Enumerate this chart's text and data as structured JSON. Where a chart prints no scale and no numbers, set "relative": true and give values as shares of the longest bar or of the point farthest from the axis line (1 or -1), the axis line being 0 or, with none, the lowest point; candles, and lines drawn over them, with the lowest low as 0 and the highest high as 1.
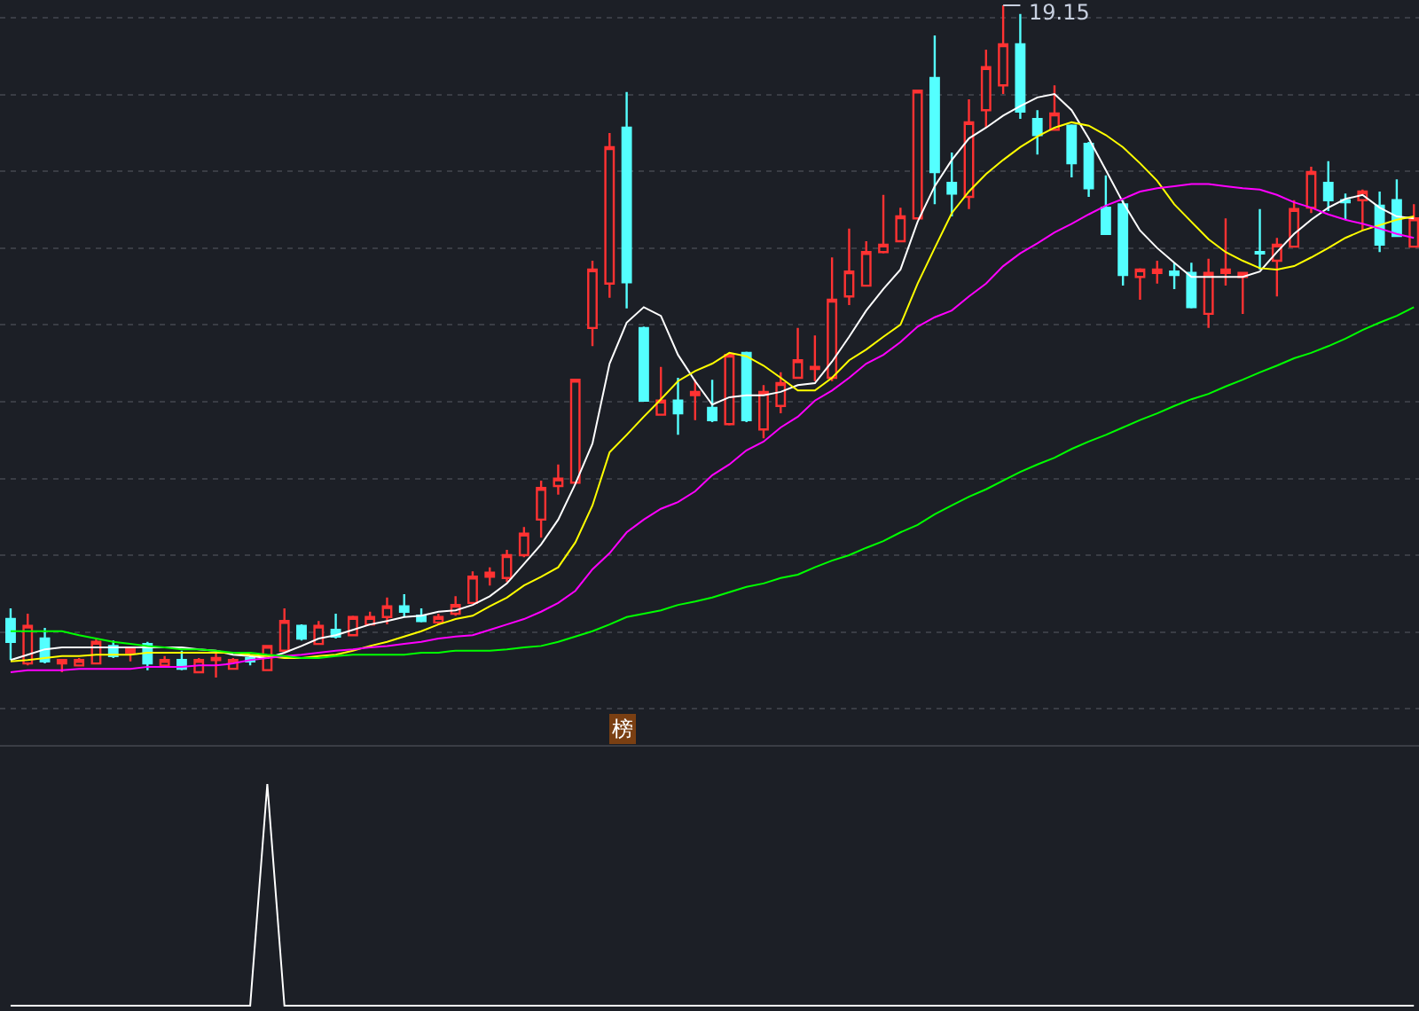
{
  "chart_data": [
    {
      "type": "candlestick",
      "relative": true,
      "grid": "y",
      "categories": [
        null,
        null,
        null,
        null,
        null,
        null,
        null,
        null,
        null,
        null,
        null,
        null,
        null,
        null,
        null,
        null,
        null,
        null,
        null,
        null,
        null,
        null,
        null,
        null,
        null,
        null,
        null,
        null,
        null,
        null,
        null,
        null,
        null,
        null,
        null,
        null,
        null,
        null,
        null,
        null,
        null,
        null,
        null,
        null,
        null,
        null,
        null,
        null,
        null,
        null,
        null,
        null,
        null,
        null,
        null,
        null,
        null,
        null,
        null,
        null,
        null,
        null,
        null,
        null,
        null,
        null,
        null,
        null,
        null,
        null,
        null,
        null,
        null,
        null,
        null,
        null,
        null,
        null,
        null,
        null,
        null,
        null,
        null
      ],
      "ohlc": [
        [
          0.087,
          0.103,
          0.026,
          0.053
        ],
        [
          0.021,
          0.095,
          0.018,
          0.077
        ],
        [
          0.058,
          0.074,
          0.021,
          0.024
        ],
        [
          0.021,
          0.026,
          0.008,
          0.026
        ],
        [
          0.018,
          0.029,
          0.018,
          0.026
        ],
        [
          0.021,
          0.058,
          0.021,
          0.053
        ],
        [
          0.047,
          0.055,
          0.029,
          0.032
        ],
        [
          0.037,
          0.045,
          0.024,
          0.042
        ],
        [
          0.05,
          0.053,
          0.011,
          0.021
        ],
        [
          0.018,
          0.032,
          0.018,
          0.026
        ],
        [
          0.026,
          0.04,
          0.011,
          0.013
        ],
        [
          0.008,
          0.029,
          0.008,
          0.026
        ],
        [
          0.026,
          0.037,
          0,
          0.029
        ],
        [
          0.013,
          0.029,
          0.013,
          0.026
        ],
        [
          0.029,
          0.032,
          0.018,
          0.024
        ],
        [
          0.011,
          0.047,
          0.011,
          0.047
        ],
        [
          0.04,
          0.103,
          0.04,
          0.084
        ],
        [
          0.077,
          0.079,
          0.055,
          0.058
        ],
        [
          0.05,
          0.084,
          0.05,
          0.077
        ],
        [
          0.071,
          0.095,
          0.058,
          0.061
        ],
        [
          0.063,
          0.092,
          0.063,
          0.09
        ],
        [
          0.079,
          0.098,
          0.079,
          0.09
        ],
        [
          0.09,
          0.119,
          0.079,
          0.106
        ],
        [
          0.106,
          0.124,
          0.09,
          0.098
        ],
        [
          0.092,
          0.103,
          0.082,
          0.084
        ],
        [
          0.082,
          0.095,
          0.079,
          0.09
        ],
        [
          0.095,
          0.121,
          0.092,
          0.108
        ],
        [
          0.111,
          0.158,
          0.111,
          0.15
        ],
        [
          0.15,
          0.164,
          0.137,
          0.156
        ],
        [
          0.148,
          0.19,
          0.142,
          0.182
        ],
        [
          0.182,
          0.224,
          0.179,
          0.214
        ],
        [
          0.235,
          0.293,
          0.208,
          0.282
        ],
        [
          0.285,
          0.317,
          0.272,
          0.296
        ],
        [
          0.29,
          0.443,
          0.29,
          0.443
        ],
        [
          0.52,
          0.62,
          0.493,
          0.607
        ],
        [
          0.586,
          0.81,
          0.565,
          0.789
        ],
        [
          0.818,
          0.871,
          0.549,
          0.588
        ],
        [
          0.52,
          0.522,
          0.412,
          0.412
        ],
        [
          0.391,
          0.462,
          0.391,
          0.412
        ],
        [
          0.412,
          0.446,
          0.361,
          0.393
        ],
        [
          0.42,
          0.443,
          0.383,
          0.425
        ],
        [
          0.401,
          0.443,
          0.38,
          0.383
        ],
        [
          0.377,
          0.483,
          0.375,
          0.48
        ],
        [
          0.483,
          0.485,
          0.38,
          0.383
        ],
        [
          0.369,
          0.435,
          0.356,
          0.425
        ],
        [
          0.404,
          0.454,
          0.393,
          0.438
        ],
        [
          0.446,
          0.52,
          0.446,
          0.472
        ],
        [
          0.459,
          0.509,
          0.441,
          0.462
        ],
        [
          0.446,
          0.625,
          0.441,
          0.562
        ],
        [
          0.567,
          0.668,
          0.554,
          0.604
        ],
        [
          0.583,
          0.649,
          0.583,
          0.633
        ],
        [
          0.633,
          0.718,
          0.631,
          0.644
        ],
        [
          0.649,
          0.699,
          0.649,
          0.686
        ],
        [
          0.683,
          0.873,
          0.683,
          0.873
        ],
        [
          0.892,
          0.955,
          0.704,
          0.752
        ],
        [
          0.736,
          0.781,
          0.686,
          0.72
        ],
        [
          0.715,
          0.86,
          0.697,
          0.826
        ],
        [
          0.844,
          0.934,
          0.818,
          0.908
        ],
        [
          0.881,
          1,
          0.868,
          0.942
        ],
        [
          0.942,
          0.987,
          0.831,
          0.842
        ],
        [
          0.831,
          0.844,
          0.778,
          0.807
        ],
        [
          0.815,
          0.881,
          0.815,
          0.839
        ],
        [
          0.821,
          0.823,
          0.744,
          0.765
        ],
        [
          0.794,
          0.797,
          0.715,
          0.728
        ],
        [
          0.699,
          0.747,
          0.66,
          0.66
        ],
        [
          0.704,
          0.71,
          0.583,
          0.599
        ],
        [
          0.596,
          0.609,
          0.562,
          0.607
        ],
        [
          0.602,
          0.62,
          0.586,
          0.607
        ],
        [
          0.604,
          0.617,
          0.578,
          0.599
        ],
        [
          0.602,
          0.617,
          0.549,
          0.551
        ],
        [
          0.541,
          0.623,
          0.52,
          0.602
        ],
        [
          0.602,
          0.683,
          0.583,
          0.607
        ],
        [
          0.596,
          0.602,
          0.541,
          0.602
        ],
        [
          0.633,
          0.697,
          0.607,
          0.631
        ],
        [
          0.62,
          0.654,
          0.567,
          0.644
        ],
        [
          0.641,
          0.71,
          0.641,
          0.697
        ],
        [
          0.699,
          0.76,
          0.691,
          0.752
        ],
        [
          0.736,
          0.768,
          0.694,
          0.71
        ],
        [
          0.71,
          0.72,
          0.681,
          0.707
        ],
        [
          0.71,
          0.726,
          0.665,
          0.723
        ],
        [
          0.702,
          0.723,
          0.633,
          0.644
        ],
        [
          0.71,
          0.741,
          0.657,
          0.657
        ],
        [
          0.641,
          0.704,
          0.641,
          0.683
        ]
      ],
      "series": [
        {
          "type": "line",
          "color": "#ffffff",
          "values": [
            0.026,
            0.034,
            0.042,
            0.045,
            0.045,
            0.045,
            0.045,
            0.045,
            0.045,
            0.045,
            0.045,
            0.042,
            0.04,
            0.034,
            0.032,
            0.029,
            0.037,
            0.047,
            0.058,
            0.063,
            0.071,
            0.079,
            0.084,
            0.09,
            0.092,
            0.098,
            0.1,
            0.108,
            0.121,
            0.14,
            0.169,
            0.198,
            0.235,
            0.288,
            0.348,
            0.467,
            0.528,
            0.551,
            0.538,
            0.48,
            0.441,
            0.406,
            0.417,
            0.42,
            0.42,
            0.425,
            0.435,
            0.438,
            0.47,
            0.507,
            0.546,
            0.578,
            0.607,
            0.678,
            0.731,
            0.77,
            0.802,
            0.818,
            0.836,
            0.85,
            0.863,
            0.868,
            0.844,
            0.802,
            0.755,
            0.707,
            0.665,
            0.639,
            0.617,
            0.596,
            0.596,
            0.596,
            0.596,
            0.604,
            0.633,
            0.66,
            0.681,
            0.699,
            0.712,
            0.718,
            0.699,
            0.686,
            0.683
          ]
        },
        {
          "type": "line",
          "color": "#ffff00",
          "values": [
            0.024,
            0.026,
            0.029,
            0.032,
            0.032,
            0.034,
            0.034,
            0.034,
            0.037,
            0.037,
            0.037,
            0.037,
            0.037,
            0.037,
            0.034,
            0.032,
            0.029,
            0.029,
            0.032,
            0.034,
            0.04,
            0.047,
            0.053,
            0.061,
            0.069,
            0.079,
            0.087,
            0.092,
            0.106,
            0.119,
            0.137,
            0.15,
            0.164,
            0.201,
            0.256,
            0.335,
            0.361,
            0.388,
            0.414,
            0.441,
            0.456,
            0.467,
            0.483,
            0.478,
            0.464,
            0.446,
            0.427,
            0.427,
            0.446,
            0.472,
            0.488,
            0.507,
            0.525,
            0.586,
            0.639,
            0.691,
            0.723,
            0.749,
            0.77,
            0.789,
            0.805,
            0.818,
            0.826,
            0.821,
            0.807,
            0.789,
            0.765,
            0.739,
            0.704,
            0.678,
            0.652,
            0.633,
            0.62,
            0.609,
            0.607,
            0.612,
            0.625,
            0.639,
            0.654,
            0.665,
            0.673,
            0.681,
            0.686
          ]
        },
        {
          "type": "line",
          "color": "#ff00ff",
          "values": [
            0.008,
            0.011,
            0.011,
            0.011,
            0.013,
            0.013,
            0.013,
            0.013,
            0.016,
            0.016,
            0.016,
            0.018,
            0.018,
            0.021,
            0.026,
            0.029,
            0.032,
            0.034,
            0.037,
            0.04,
            0.042,
            0.045,
            0.047,
            0.05,
            0.053,
            0.058,
            0.061,
            0.063,
            0.071,
            0.079,
            0.087,
            0.098,
            0.111,
            0.129,
            0.161,
            0.185,
            0.216,
            0.235,
            0.251,
            0.261,
            0.277,
            0.301,
            0.317,
            0.338,
            0.351,
            0.372,
            0.388,
            0.412,
            0.427,
            0.446,
            0.467,
            0.48,
            0.499,
            0.522,
            0.536,
            0.546,
            0.567,
            0.586,
            0.612,
            0.631,
            0.646,
            0.662,
            0.675,
            0.689,
            0.702,
            0.712,
            0.723,
            0.728,
            0.731,
            0.734,
            0.734,
            0.731,
            0.728,
            0.726,
            0.718,
            0.707,
            0.699,
            0.689,
            0.681,
            0.675,
            0.668,
            0.66,
            0.654
          ]
        },
        {
          "type": "line",
          "color": "#00ff00",
          "values": [
            0.069,
            0.069,
            0.069,
            0.069,
            0.063,
            0.058,
            0.053,
            0.05,
            0.047,
            0.045,
            0.042,
            0.042,
            0.04,
            0.037,
            0.037,
            0.034,
            0.032,
            0.029,
            0.029,
            0.032,
            0.034,
            0.034,
            0.034,
            0.034,
            0.037,
            0.037,
            0.04,
            0.04,
            0.04,
            0.042,
            0.045,
            0.047,
            0.053,
            0.061,
            0.069,
            0.079,
            0.09,
            0.095,
            0.1,
            0.108,
            0.113,
            0.119,
            0.127,
            0.135,
            0.14,
            0.148,
            0.153,
            0.164,
            0.174,
            0.182,
            0.193,
            0.203,
            0.216,
            0.227,
            0.243,
            0.256,
            0.269,
            0.28,
            0.293,
            0.306,
            0.317,
            0.327,
            0.34,
            0.351,
            0.361,
            0.372,
            0.383,
            0.393,
            0.404,
            0.414,
            0.422,
            0.433,
            0.443,
            0.454,
            0.464,
            0.475,
            0.483,
            0.493,
            0.504,
            0.517,
            0.528,
            0.538,
            0.551
          ]
        }
      ],
      "annotations": [
        "19.15",
        "榜"
      ]
    },
    {
      "type": "line",
      "relative": true,
      "categories": [
        null,
        null,
        null,
        null,
        null,
        null,
        null,
        null,
        null,
        null,
        null,
        null,
        null,
        null,
        null,
        null,
        null,
        null,
        null,
        null,
        null,
        null,
        null,
        null,
        null,
        null,
        null,
        null,
        null,
        null,
        null,
        null,
        null,
        null,
        null,
        null,
        null,
        null,
        null,
        null,
        null,
        null,
        null,
        null,
        null,
        null,
        null,
        null,
        null,
        null,
        null,
        null,
        null,
        null,
        null,
        null,
        null,
        null,
        null,
        null,
        null,
        null,
        null,
        null,
        null,
        null,
        null,
        null,
        null,
        null,
        null,
        null,
        null,
        null,
        null,
        null,
        null,
        null,
        null,
        null,
        null,
        null,
        null
      ],
      "series": [
        {
          "color": "#ffffff",
          "values": [
            0,
            0,
            0,
            0,
            0,
            0,
            0,
            0,
            0,
            0,
            0,
            0,
            0,
            0,
            0,
            1,
            0,
            0,
            0,
            0,
            0,
            0,
            0,
            0,
            0,
            0,
            0,
            0,
            0,
            0,
            0,
            0,
            0,
            0,
            0,
            0,
            0,
            0,
            0,
            0,
            0,
            0,
            0,
            0,
            0,
            0,
            0,
            0,
            0,
            0,
            0,
            0,
            0,
            0,
            0,
            0,
            0,
            0,
            0,
            0,
            0,
            0,
            0,
            0,
            0,
            0,
            0,
            0,
            0,
            0,
            0,
            0,
            0,
            0,
            0,
            0,
            0,
            0,
            0,
            0,
            0,
            0,
            0
          ]
        }
      ]
    }
  ]
}
